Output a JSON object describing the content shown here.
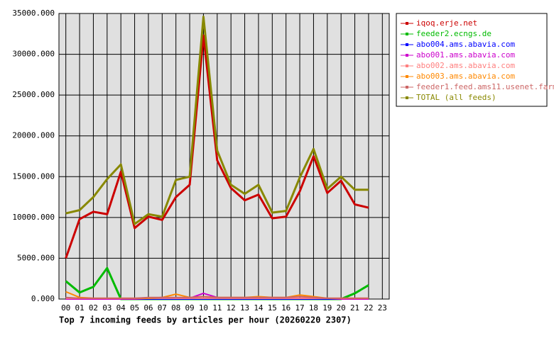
{
  "chart_data": {
    "type": "line",
    "title": "Top 7 incoming feeds by articles per hour (20260220 2307)",
    "categories": [
      "00",
      "01",
      "02",
      "03",
      "04",
      "05",
      "06",
      "07",
      "08",
      "09",
      "10",
      "11",
      "12",
      "13",
      "14",
      "15",
      "16",
      "17",
      "18",
      "19",
      "20",
      "21",
      "22",
      "23"
    ],
    "ylim": [
      0,
      35000
    ],
    "yticks": [
      {
        "value": 0,
        "label": "0.000"
      },
      {
        "value": 5000,
        "label": "5000.000"
      },
      {
        "value": 10000,
        "label": "10000.000"
      },
      {
        "value": 15000,
        "label": "15000.000"
      },
      {
        "value": 20000,
        "label": "20000.000"
      },
      {
        "value": 25000,
        "label": "25000.000"
      },
      {
        "value": 30000,
        "label": "30000.000"
      },
      {
        "value": 35000,
        "label": "35000.000"
      }
    ],
    "grid": true,
    "legend": "right",
    "series": [
      {
        "name": "iqoq.erje.net",
        "color": "#cc0000",
        "values": [
          5000,
          9800,
          10700,
          10400,
          15600,
          8700,
          10100,
          9700,
          12500,
          14000,
          32300,
          17000,
          13600,
          12100,
          12800,
          9900,
          10100,
          13200,
          17500,
          13000,
          14500,
          11600,
          11200,
          null
        ]
      },
      {
        "name": "feeder2.ecngs.de",
        "color": "#00bb00",
        "values": [
          2200,
          800,
          1500,
          3800,
          0,
          0,
          0,
          0,
          0,
          0,
          0,
          0,
          0,
          0,
          0,
          0,
          0,
          0,
          0,
          0,
          0,
          700,
          1700,
          null
        ]
      },
      {
        "name": "abo004.ams.abavia.com",
        "color": "#0000ff",
        "values": [
          0,
          0,
          0,
          0,
          0,
          0,
          0,
          0,
          0,
          0,
          0,
          0,
          0,
          0,
          0,
          0,
          0,
          0,
          0,
          0,
          0,
          0,
          0,
          null
        ]
      },
      {
        "name": "abo001.ams.abavia.com",
        "color": "#cc00cc",
        "values": [
          0,
          0,
          0,
          0,
          0,
          0,
          100,
          200,
          100,
          100,
          700,
          200,
          100,
          100,
          100,
          100,
          100,
          100,
          100,
          100,
          0,
          0,
          0,
          null
        ]
      },
      {
        "name": "abo002.ams.abavia.com",
        "color": "#ff8080",
        "values": [
          100,
          100,
          100,
          100,
          100,
          100,
          100,
          100,
          100,
          100,
          100,
          100,
          100,
          100,
          100,
          100,
          100,
          100,
          100,
          100,
          100,
          100,
          100,
          null
        ]
      },
      {
        "name": "abo003.ams.abavia.com",
        "color": "#ff8800",
        "values": [
          900,
          200,
          100,
          100,
          100,
          100,
          100,
          200,
          600,
          200,
          300,
          200,
          200,
          200,
          300,
          200,
          200,
          500,
          300,
          100,
          100,
          100,
          100,
          null
        ]
      },
      {
        "name": "feeder1.feed.ams11.usenet.farm",
        "color": "#cc6666",
        "values": [
          200,
          100,
          100,
          100,
          100,
          100,
          200,
          200,
          200,
          200,
          300,
          200,
          200,
          200,
          200,
          200,
          200,
          300,
          200,
          100,
          100,
          100,
          100,
          null
        ]
      },
      {
        "name": "TOTAL (all feeds)",
        "color": "#888800",
        "values": [
          10500,
          10900,
          12500,
          14700,
          16500,
          9200,
          10400,
          10100,
          14600,
          15000,
          34600,
          18200,
          14000,
          12900,
          14000,
          10600,
          10800,
          14900,
          18400,
          13500,
          15000,
          13400,
          13400,
          null
        ]
      }
    ]
  }
}
